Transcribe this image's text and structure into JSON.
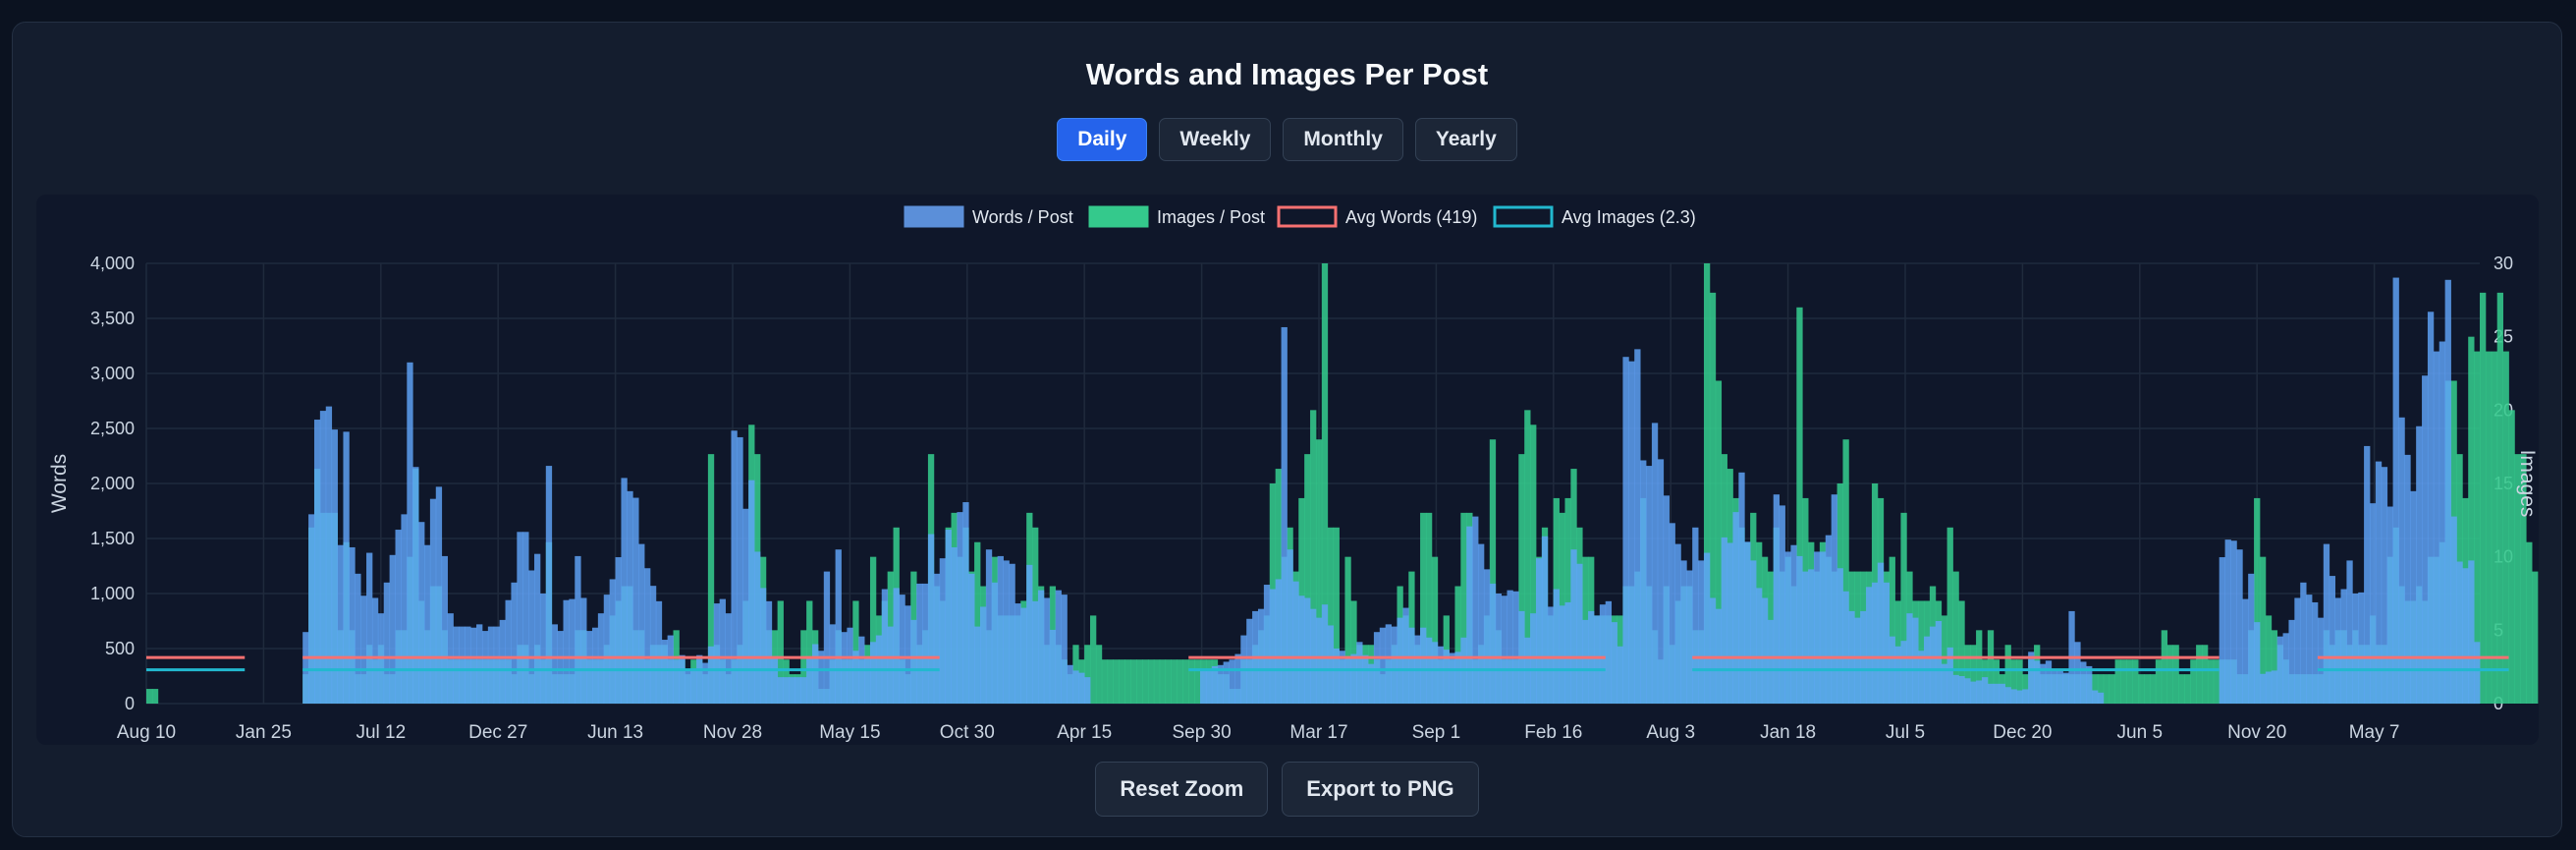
{
  "panel_title": "Words and Images Per Post",
  "period_buttons": [
    {
      "label": "Daily",
      "active": true
    },
    {
      "label": "Weekly",
      "active": false
    },
    {
      "label": "Monthly",
      "active": false
    },
    {
      "label": "Yearly",
      "active": false
    }
  ],
  "footer_buttons": {
    "reset_label": "Reset Zoom",
    "export_label": "Export to PNG"
  },
  "colors": {
    "words": "#5b8fd9",
    "words_fill": "#60a5fa",
    "images": "#34c98c",
    "avg_words": "#f87171",
    "avg_images": "#22b8cf",
    "grid": "#1f2a3c",
    "tick": "#cbd5e1"
  },
  "chart_data": {
    "type": "bar",
    "title": "Words and Images Per Post",
    "legend": {
      "placement": "top-center",
      "entries": [
        "Words / Post",
        "Images / Post",
        "Avg Words (419)",
        "Avg Images (2.3)"
      ]
    },
    "xlabel": "",
    "x_tick_labels": [
      "Aug 10",
      "Jan 25",
      "Jul 12",
      "Dec 27",
      "Jun 13",
      "Nov 28",
      "May 15",
      "Oct 30",
      "Apr 15",
      "Sep 30",
      "Mar 17",
      "Sep 1",
      "Feb 16",
      "Aug 3",
      "Jan 18",
      "Jul 5",
      "Dec 20",
      "Jun 5",
      "Nov 20",
      "May 7"
    ],
    "y_left": {
      "label": "Words",
      "range": [
        0,
        4000
      ],
      "ticks": [
        0,
        500,
        1000,
        1500,
        2000,
        2500,
        3000,
        3500,
        4000
      ],
      "tick_labels": [
        "0",
        "500",
        "1,000",
        "1,500",
        "2,000",
        "2,500",
        "3,000",
        "3,500",
        "4,000"
      ]
    },
    "y_right": {
      "label": "Images",
      "range": [
        0,
        30
      ],
      "ticks": [
        0,
        5,
        10,
        15,
        20,
        25,
        30
      ],
      "tick_labels": [
        "0",
        "5",
        "10",
        "15",
        "20",
        "25",
        "30"
      ]
    },
    "grid": true,
    "series": [
      {
        "name": "Words / Post",
        "axis": "left",
        "type": "bar",
        "values": [
          0,
          0,
          0,
          0,
          0,
          0,
          0,
          0,
          0,
          0,
          0,
          0,
          0,
          0,
          0,
          0,
          0,
          0,
          0,
          0,
          0,
          0,
          0,
          0,
          0,
          0,
          0,
          650,
          1720,
          2580,
          2660,
          2700,
          2490,
          1440,
          2470,
          1420,
          1180,
          980,
          1370,
          960,
          820,
          1100,
          1350,
          1580,
          1720,
          3100,
          2150,
          1650,
          1440,
          1860,
          1970,
          1340,
          820,
          700,
          700,
          700,
          690,
          720,
          660,
          700,
          700,
          760,
          940,
          1100,
          1560,
          1560,
          1210,
          1360,
          1000,
          2160,
          720,
          660,
          940,
          950,
          1340,
          960,
          660,
          690,
          820,
          990,
          1130,
          1330,
          2050,
          1930,
          1870,
          1450,
          1230,
          1070,
          930,
          580,
          620,
          400,
          440,
          300,
          300,
          440,
          370,
          520,
          910,
          950,
          820,
          2480,
          2420,
          1770,
          2030,
          1380,
          1050,
          930,
          430,
          240,
          240,
          240,
          240,
          240,
          420,
          540,
          480,
          1200,
          720,
          1400,
          650,
          690,
          480,
          610,
          410,
          560,
          620,
          1040,
          700,
          1050,
          990,
          890,
          760,
          1090,
          1090,
          1540,
          1180,
          1320,
          1580,
          1420,
          1740,
          1830,
          1180,
          700,
          880,
          1400,
          1100,
          1340,
          1300,
          1270,
          910,
          870,
          1260,
          930,
          1030,
          960,
          670,
          1030,
          990,
          350,
          300,
          280,
          240,
          0,
          0,
          0,
          0,
          0,
          0,
          0,
          0,
          0,
          0,
          0,
          0,
          0,
          0,
          0,
          0,
          0,
          0,
          0,
          300,
          300,
          340,
          350,
          380,
          400,
          450,
          620,
          770,
          840,
          860,
          1080,
          1040,
          1130,
          3420,
          1400,
          1110,
          980,
          960,
          860,
          780,
          900,
          710,
          500,
          480,
          430,
          450,
          560,
          440,
          360,
          650,
          690,
          720,
          700,
          780,
          870,
          690,
          620,
          690,
          600,
          560,
          520,
          490,
          460,
          470,
          600,
          1610,
          1700,
          1450,
          1220,
          1090,
          1000,
          980,
          1030,
          1020,
          840,
          600,
          820,
          1320,
          1520,
          880,
          1040,
          890,
          920,
          1400,
          1270,
          760,
          840,
          800,
          900,
          930,
          740,
          520,
          3150,
          3110,
          3220,
          2210,
          2160,
          2550,
          2220,
          1890,
          1640,
          1450,
          1300,
          1210,
          1600,
          1300,
          1370,
          960,
          860,
          1510,
          1460,
          1740,
          2100,
          1470,
          1300,
          1050,
          960,
          760,
          1900,
          1800,
          1380,
          1440,
          1340,
          1200,
          1220,
          1380,
          1380,
          1530,
          1900,
          1230,
          1020,
          840,
          780,
          840,
          1060,
          1100,
          1280,
          1100,
          610,
          520,
          570,
          820,
          780,
          480,
          610,
          700,
          750,
          360,
          510,
          260,
          250,
          230,
          200,
          210,
          240,
          180,
          180,
          180,
          150,
          130,
          120,
          130,
          470,
          390,
          360,
          390,
          310,
          300,
          280,
          840,
          560,
          380,
          340,
          120,
          100,
          0,
          0,
          0,
          0,
          0,
          0,
          0,
          0,
          0,
          0,
          0,
          0,
          0,
          0,
          0,
          0,
          0,
          0,
          0,
          0,
          1330,
          1490,
          1480,
          1400,
          950,
          1180,
          740,
          270,
          290,
          300,
          610,
          640,
          760,
          960,
          1100,
          990,
          920,
          780,
          1450,
          1160,
          960,
          1040,
          1300,
          1000,
          1010,
          2340,
          1820,
          2200,
          2150,
          1790,
          3870,
          2600,
          2260,
          1930,
          2520,
          2980,
          3560,
          3200,
          3290,
          3850,
          1700,
          1290,
          1230,
          1300,
          560
        ]
      },
      {
        "name": "Images / Post",
        "axis": "right",
        "type": "bar",
        "values": [
          1,
          1,
          0,
          0,
          0,
          0,
          0,
          0,
          0,
          0,
          0,
          0,
          0,
          0,
          0,
          0,
          0,
          0,
          0,
          0,
          0,
          0,
          0,
          0,
          0,
          0,
          0,
          2,
          12,
          16,
          13,
          13,
          13,
          5,
          11,
          5,
          2,
          2,
          4,
          3,
          4,
          2,
          2,
          5,
          5,
          10,
          16,
          7,
          5,
          8,
          8,
          5,
          3,
          3,
          3,
          3,
          3,
          3,
          3,
          3,
          3,
          3,
          3,
          2,
          4,
          4,
          2,
          4,
          3,
          11,
          2,
          2,
          2,
          2,
          5,
          5,
          3,
          3,
          3,
          4,
          6,
          7,
          8,
          8,
          5,
          5,
          3,
          4,
          4,
          4,
          3,
          5,
          3,
          2,
          3,
          3,
          2,
          17,
          4,
          3,
          2,
          3,
          4,
          7,
          19,
          17,
          10,
          5,
          5,
          7,
          3,
          2,
          2,
          5,
          7,
          5,
          1,
          1,
          3,
          5,
          3,
          3,
          7,
          3,
          4,
          10,
          6,
          7,
          9,
          12,
          3,
          2,
          9,
          4,
          5,
          17,
          8,
          7,
          12,
          13,
          10,
          12,
          9,
          11,
          8,
          5,
          10,
          6,
          6,
          6,
          6,
          7,
          13,
          12,
          8,
          4,
          8,
          4,
          3,
          2,
          4,
          3,
          4,
          6,
          4,
          3,
          3,
          3,
          3,
          3,
          3,
          3,
          3,
          3,
          3,
          3,
          3,
          3,
          3,
          3,
          3,
          3,
          3,
          3,
          3,
          2,
          2,
          1,
          1,
          3,
          3,
          4,
          5,
          6,
          15,
          16,
          10,
          12,
          9,
          14,
          17,
          20,
          18,
          30,
          12,
          12,
          3,
          10,
          7,
          4,
          4,
          4,
          3,
          2,
          3,
          4,
          8,
          6,
          9,
          4,
          13,
          13,
          10,
          3,
          6,
          3,
          8,
          13,
          13,
          3,
          4,
          6,
          18,
          5,
          3,
          3,
          3,
          17,
          20,
          19,
          10,
          12,
          6,
          14,
          13,
          14,
          16,
          12,
          10,
          10,
          6,
          6,
          6,
          6,
          6,
          8,
          8,
          9,
          14,
          8,
          5,
          3,
          8,
          4,
          7,
          8,
          8,
          5,
          5,
          30,
          28,
          22,
          17,
          16,
          14,
          12,
          11,
          13,
          11,
          10,
          9,
          12,
          9,
          10,
          8,
          27,
          14,
          11,
          9,
          11,
          10,
          9,
          15,
          18,
          9,
          9,
          9,
          9,
          15,
          14,
          9,
          10,
          7,
          13,
          9,
          7,
          7,
          7,
          8,
          7,
          6,
          12,
          9,
          7,
          4,
          4,
          5,
          3,
          5,
          3,
          2,
          4,
          3,
          3,
          2,
          3,
          4,
          2,
          2,
          2,
          2,
          2,
          2,
          2,
          2,
          2,
          2,
          2,
          2,
          2,
          3,
          3,
          3,
          3,
          2,
          2,
          2,
          3,
          5,
          4,
          4,
          2,
          2,
          3,
          4,
          4,
          3,
          3,
          3,
          3,
          3,
          2,
          2,
          5,
          14,
          10,
          6,
          5,
          4,
          3,
          2,
          2,
          2,
          2,
          2,
          2,
          5,
          4,
          5,
          5,
          4,
          5,
          4,
          4,
          6,
          4,
          4,
          10,
          12,
          8,
          7,
          7,
          8,
          7,
          10,
          10,
          11,
          22,
          22,
          17,
          14,
          25,
          24,
          28,
          24,
          24,
          28,
          24,
          20,
          17,
          17,
          11,
          9
        ]
      },
      {
        "name": "Avg Words (419)",
        "axis": "left",
        "type": "line",
        "segments": [
          [
            0,
            17,
            419
          ],
          [
            27,
            137,
            419
          ],
          [
            180,
            252,
            419
          ],
          [
            267,
            358,
            419
          ],
          [
            375,
            408,
            419
          ]
        ]
      },
      {
        "name": "Avg Images (2.3)",
        "axis": "right",
        "type": "line",
        "segments": [
          [
            0,
            17,
            2.3
          ],
          [
            27,
            137,
            2.3
          ],
          [
            180,
            252,
            2.3
          ],
          [
            267,
            358,
            2.3
          ],
          [
            375,
            408,
            2.3
          ]
        ]
      }
    ]
  }
}
